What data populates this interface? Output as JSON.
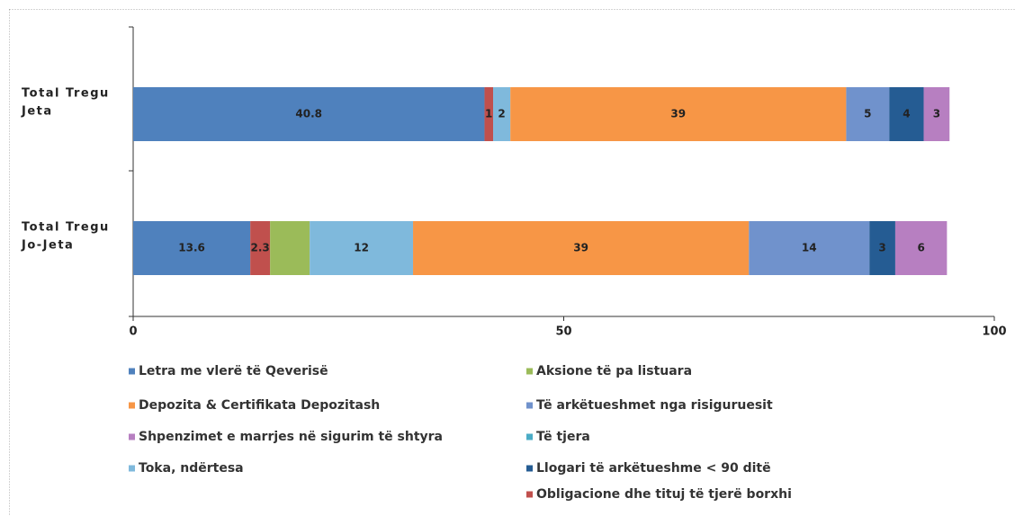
{
  "chart_data": {
    "type": "stacked-bar-horizontal",
    "categories": [
      [
        "Total Tregu",
        "Jeta"
      ],
      [
        "Total Tregu",
        "Jo-Jeta"
      ]
    ],
    "series": [
      {
        "name": "Letra me vlerë të Qeverisë",
        "color": "#4f81bd",
        "values": [
          40.8,
          13.6
        ]
      },
      {
        "name": "Obligacione dhe tituj të tjerë borxhi",
        "color": "#c0504d",
        "values": [
          1,
          2.3
        ]
      },
      {
        "name": "Aksione të pa listuara",
        "color": "#9bbb59",
        "values": [
          null,
          4.6
        ],
        "show_labels": false
      },
      {
        "name": "Toka, ndërtesa",
        "color": "#7fb9dc",
        "values": [
          2,
          12
        ]
      },
      {
        "name": "Të tjera",
        "color": "#4bacc6",
        "values": [
          null,
          null
        ]
      },
      {
        "name": "Depozita & Certifikata Depozitash",
        "color": "#f79646",
        "values": [
          39,
          39
        ]
      },
      {
        "name": "Të arkëtueshmet nga risiguruesit",
        "color": "#7092cc",
        "values": [
          5,
          14
        ]
      },
      {
        "name": "Llogari të arkëtueshme < 90 ditë",
        "color": "#255c93",
        "values": [
          4,
          3
        ]
      },
      {
        "name": "Shpenzimet e marrjes në sigurim të shtyra",
        "color": "#b77fc1",
        "values": [
          3,
          6
        ]
      }
    ],
    "xlim": [
      0,
      100
    ],
    "xticks": [
      0,
      50,
      100
    ]
  }
}
